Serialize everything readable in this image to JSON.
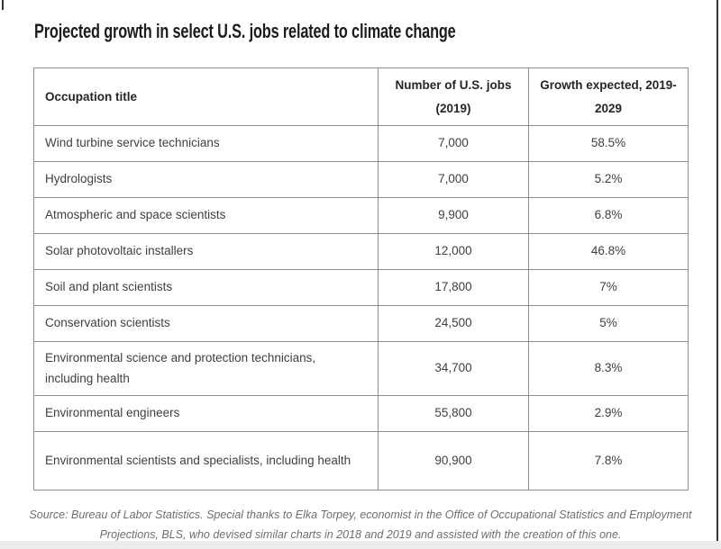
{
  "page": {
    "title": "Projected growth in select U.S. jobs related to climate change",
    "source_note": "Source: Bureau of Labor Statistics. Special thanks to Elka Torpey, economist in the Office of Occupational Statistics and Employment\nProjections, BLS, who devised similar charts in 2018 and 2019 and assisted with the creation of this one."
  },
  "table": {
    "headers": {
      "occupation": "Occupation title",
      "jobs": "Number of U.S. jobs\n(2019)",
      "growth": "Growth expected, 2019-\n2029"
    },
    "rows": [
      {
        "occupation": "Wind turbine service technicians",
        "jobs": "7,000",
        "growth": "58.5%"
      },
      {
        "occupation": "Hydrologists",
        "jobs": "7,000",
        "growth": "5.2%"
      },
      {
        "occupation": "Atmospheric and space scientists",
        "jobs": "9,900",
        "growth": "6.8%"
      },
      {
        "occupation": "Solar photovoltaic installers",
        "jobs": "12,000",
        "growth": "46.8%"
      },
      {
        "occupation": "Soil and plant scientists",
        "jobs": "17,800",
        "growth": "7%"
      },
      {
        "occupation": "Conservation scientists",
        "jobs": "24,500",
        "growth": "5%"
      },
      {
        "occupation": "Environmental science and protection technicians, including health",
        "jobs": "34,700",
        "growth": "8.3%"
      },
      {
        "occupation": "Environmental engineers",
        "jobs": "55,800",
        "growth": "2.9%"
      },
      {
        "occupation": "Environmental scientists and specialists, including health",
        "jobs": "90,900",
        "growth": "7.8%"
      }
    ]
  },
  "chart_data": {
    "type": "table",
    "title": "Projected growth in select U.S. jobs related to climate change",
    "columns": [
      "Occupation title",
      "Number of U.S. jobs (2019)",
      "Growth expected, 2019-2029 (%)"
    ],
    "rows": [
      [
        "Wind turbine service technicians",
        7000,
        58.5
      ],
      [
        "Hydrologists",
        7000,
        5.2
      ],
      [
        "Atmospheric and space scientists",
        9900,
        6.8
      ],
      [
        "Solar photovoltaic installers",
        12000,
        46.8
      ],
      [
        "Soil and plant scientists",
        17800,
        7
      ],
      [
        "Conservation scientists",
        24500,
        5
      ],
      [
        "Environmental science and protection technicians, including health",
        34700,
        8.3
      ],
      [
        "Environmental engineers",
        55800,
        2.9
      ],
      [
        "Environmental scientists and specialists, including health",
        90900,
        7.8
      ]
    ],
    "source": "Bureau of Labor Statistics"
  },
  "colors": {
    "background": "#ffffff",
    "title_text": "#1c1c1c",
    "header_text": "#262626",
    "cell_text": "#3f3f3f",
    "border": "#8f8f8f",
    "source_text": "#6e6e6e",
    "bottom_strip": "#edecec"
  }
}
